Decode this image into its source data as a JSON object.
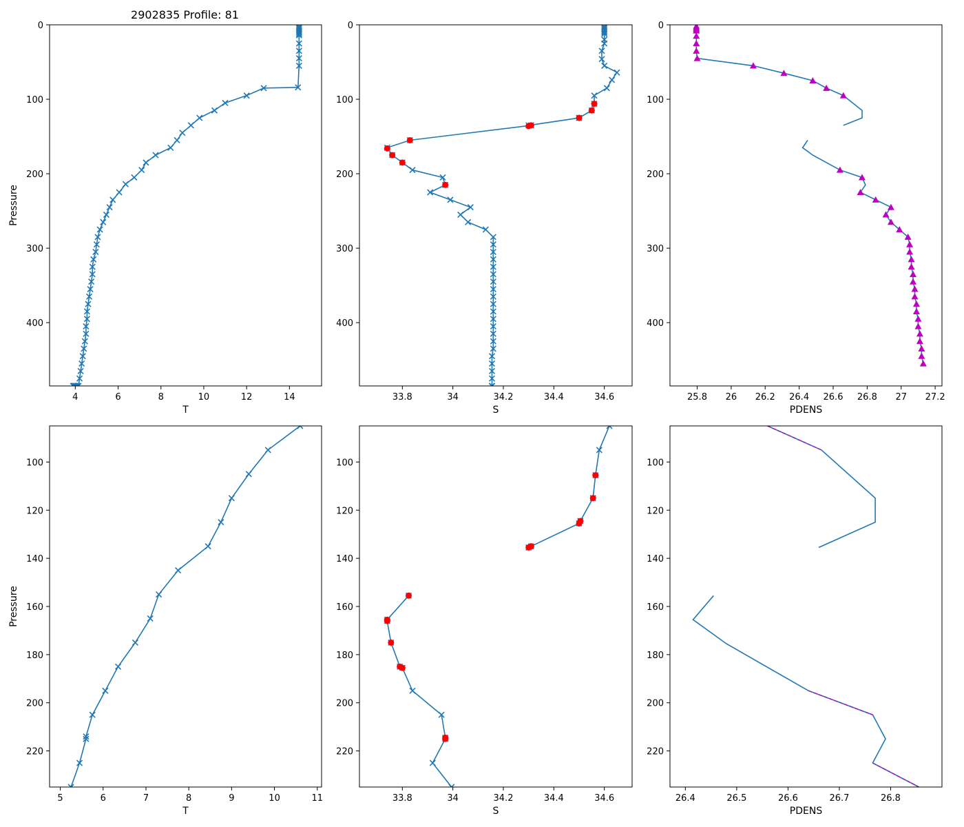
{
  "figure": {
    "title": "2902835 Profile: 81"
  },
  "colors": {
    "line": "#1f77b4",
    "flag": "#ff0000",
    "pdens_mark": "#c000c0",
    "axis": "#000000"
  },
  "chart_data": [
    {
      "type": "line",
      "title": "2902835 Profile: 81",
      "xlabel": "T",
      "ylabel": "Pressure",
      "xlim": [
        2.8,
        15.5
      ],
      "ylim": [
        485,
        0
      ],
      "xticks": [
        4,
        6,
        8,
        10,
        12,
        14
      ],
      "yticks": [
        0,
        100,
        200,
        300,
        400
      ],
      "series": [
        {
          "name": "T",
          "marker": "x",
          "color": "#1f77b4",
          "x": [
            14.45,
            14.45,
            14.45,
            14.45,
            14.45,
            14.45,
            14.45,
            14.45,
            14.45,
            14.45,
            14.45,
            14.4,
            12.8,
            12.0,
            11.0,
            10.5,
            9.8,
            9.4,
            9.0,
            8.75,
            8.45,
            7.75,
            7.3,
            7.1,
            6.75,
            6.35,
            6.05,
            5.75,
            5.6,
            5.45,
            5.3,
            5.15,
            5.05,
            5.0,
            4.95,
            4.85,
            4.8,
            4.8,
            4.75,
            4.7,
            4.65,
            4.6,
            4.55,
            4.55,
            4.5,
            4.5,
            4.45,
            4.4,
            4.35,
            4.3,
            4.25,
            4.2,
            4.15,
            4.1,
            4.05,
            4.0,
            3.95,
            3.95,
            3.9,
            3.9
          ],
          "y": [
            2,
            4,
            6,
            8,
            10,
            12,
            14,
            25,
            35,
            45,
            55,
            84,
            85,
            95,
            105,
            115,
            125,
            135,
            145,
            155,
            165,
            175,
            185,
            195,
            205,
            214,
            225,
            235,
            245,
            255,
            265,
            275,
            285,
            295,
            305,
            315,
            325,
            335,
            345,
            355,
            365,
            375,
            385,
            395,
            405,
            415,
            425,
            435,
            445,
            455,
            465,
            475,
            485,
            485,
            485,
            485,
            485,
            485,
            485,
            485
          ]
        },
        {
          "name": "T_valid",
          "marker": "x",
          "color": "#1f77b4",
          "x": [],
          "y": []
        }
      ]
    },
    {
      "type": "line",
      "xlabel": "S",
      "ylabel": "",
      "xlim": [
        33.63,
        34.71
      ],
      "ylim": [
        485,
        0
      ],
      "xticks": [
        33.8,
        34.0,
        34.2,
        34.4,
        34.6
      ],
      "yticks": [
        0,
        100,
        200,
        300,
        400
      ],
      "series": [
        {
          "name": "S",
          "marker": "x",
          "color": "#1f77b4",
          "x": [
            34.6,
            34.6,
            34.6,
            34.6,
            34.6,
            34.6,
            34.6,
            34.6,
            34.59,
            34.59,
            34.6,
            34.65,
            34.63,
            34.61,
            34.56,
            34.56,
            34.55,
            34.5,
            34.5,
            34.3,
            34.31,
            33.83,
            33.74,
            33.76,
            33.8,
            33.84,
            33.96,
            33.97,
            33.91,
            33.99,
            34.07,
            34.03,
            34.06,
            34.13,
            34.16,
            34.16,
            34.16,
            34.16,
            34.16,
            34.16,
            34.16,
            34.16,
            34.16,
            34.16,
            34.16,
            34.16,
            34.16,
            34.16,
            34.16,
            34.16,
            34.155,
            34.155,
            34.155,
            34.155,
            34.155,
            34.155,
            34.155,
            34.155,
            34.155
          ],
          "y": [
            2,
            4,
            6,
            8,
            10,
            12,
            20,
            25,
            35,
            46,
            55,
            64,
            74,
            85,
            95,
            106,
            115,
            125,
            125,
            135,
            135,
            155,
            165,
            175,
            185,
            195,
            205,
            215,
            225,
            235,
            245,
            255,
            265,
            275,
            285,
            295,
            305,
            315,
            325,
            335,
            345,
            355,
            365,
            375,
            385,
            395,
            405,
            415,
            425,
            435,
            445,
            455,
            465,
            475,
            485,
            485,
            485,
            485,
            485
          ]
        },
        {
          "name": "S flagged",
          "marker": "o",
          "color": "#ff0000",
          "x": [
            34.56,
            34.55,
            34.5,
            34.3,
            34.31,
            33.83,
            33.74,
            33.76,
            33.8,
            33.97
          ],
          "y": [
            106,
            115,
            125,
            136,
            135,
            155,
            166,
            175,
            185,
            215
          ]
        }
      ]
    },
    {
      "type": "line",
      "xlabel": "PDENS",
      "ylabel": "",
      "xlim": [
        25.64,
        27.24
      ],
      "ylim": [
        485,
        0
      ],
      "xticks": [
        25.8,
        26.0,
        26.2,
        26.4,
        26.6,
        26.8,
        27.0,
        27.2
      ],
      "yticks": [
        0,
        100,
        200,
        300,
        400
      ],
      "series": [
        {
          "name": "PDENS",
          "marker": "",
          "color": "#1f77b4",
          "x": [
            25.795,
            25.795,
            25.795,
            25.795,
            25.795,
            25.795,
            25.795,
            25.8,
            26.13,
            26.31,
            26.48,
            26.56,
            26.66,
            26.77,
            26.77,
            26.66,
            null,
            26.45,
            26.42,
            26.48,
            26.64,
            26.77,
            26.79,
            26.76,
            26.85,
            26.94,
            26.91,
            26.94,
            26.99,
            27.04,
            27.05,
            27.05,
            27.06,
            27.06,
            27.07,
            27.07,
            27.08,
            27.08,
            27.09,
            27.09,
            27.1,
            27.1,
            27.11,
            27.11,
            27.12,
            27.12,
            27.13
          ],
          "y": [
            2,
            4,
            6,
            8,
            15,
            25,
            35,
            45,
            55,
            65,
            75,
            85,
            95,
            115,
            125,
            135,
            null,
            155,
            165,
            175,
            195,
            205,
            215,
            225,
            235,
            245,
            255,
            265,
            275,
            285,
            295,
            305,
            315,
            325,
            335,
            345,
            355,
            365,
            375,
            385,
            395,
            405,
            415,
            425,
            435,
            445,
            455
          ]
        },
        {
          "name": "PDENS valid",
          "marker": "^",
          "color": "#c000c0",
          "x": [
            25.795,
            25.795,
            25.795,
            25.795,
            25.795,
            25.795,
            25.795,
            25.8,
            26.13,
            26.31,
            26.48,
            26.56,
            26.66,
            26.64,
            26.77,
            26.76,
            26.85,
            26.94,
            26.91,
            26.94,
            26.99,
            27.04,
            27.05,
            27.05,
            27.06,
            27.06,
            27.07,
            27.07,
            27.08,
            27.08,
            27.09,
            27.09,
            27.1,
            27.1,
            27.11,
            27.11,
            27.12,
            27.12,
            27.13
          ],
          "y": [
            2,
            4,
            6,
            8,
            15,
            25,
            35,
            45,
            55,
            65,
            75,
            85,
            95,
            195,
            205,
            225,
            235,
            245,
            255,
            265,
            275,
            285,
            295,
            305,
            315,
            325,
            335,
            345,
            355,
            365,
            375,
            385,
            395,
            405,
            415,
            425,
            435,
            445,
            455
          ]
        }
      ]
    },
    {
      "type": "line",
      "xlabel": "T",
      "ylabel": "Pressure",
      "xlim": [
        4.75,
        11.1
      ],
      "ylim": [
        235,
        85
      ],
      "xticks": [
        5,
        6,
        7,
        8,
        9,
        10,
        11
      ],
      "yticks": [
        100,
        120,
        140,
        160,
        180,
        200,
        220
      ],
      "series": [
        {
          "name": "T",
          "marker": "x",
          "color": "#1f77b4",
          "x": [
            10.6,
            9.85,
            9.4,
            9.0,
            8.75,
            8.45,
            7.75,
            7.3,
            7.1,
            6.75,
            6.35,
            6.05,
            5.75,
            5.6,
            5.6,
            5.45,
            5.25
          ],
          "y": [
            85,
            95,
            105,
            115,
            125,
            135,
            145,
            155,
            165,
            175,
            185,
            195,
            205,
            214,
            215,
            225,
            235
          ]
        }
      ]
    },
    {
      "type": "line",
      "xlabel": "S",
      "ylabel": "",
      "xlim": [
        33.63,
        34.71
      ],
      "ylim": [
        235,
        85
      ],
      "xticks": [
        33.8,
        34.0,
        34.2,
        34.4,
        34.6
      ],
      "yticks": [
        100,
        120,
        140,
        160,
        180,
        200,
        220
      ],
      "series": [
        {
          "name": "S",
          "marker": "x",
          "color": "#1f77b4",
          "x": [
            34.62,
            34.58,
            34.565,
            34.555,
            34.505,
            34.5,
            34.31,
            34.3,
            null,
            33.825,
            33.74,
            33.74,
            33.755,
            33.79,
            33.8,
            33.84,
            33.955,
            33.97,
            33.97,
            33.92,
            33.995
          ],
          "y": [
            85,
            95,
            105.5,
            115,
            124.5,
            125.5,
            135,
            135.5,
            null,
            155.5,
            165.5,
            166,
            175,
            185,
            185.5,
            195,
            205,
            214.5,
            215,
            225,
            235
          ]
        },
        {
          "name": "S flagged",
          "marker": "o",
          "color": "#ff0000",
          "x": [
            34.565,
            34.555,
            34.505,
            34.5,
            34.31,
            34.3,
            33.825,
            33.74,
            33.74,
            33.755,
            33.79,
            33.8,
            33.97,
            33.97
          ],
          "y": [
            105.5,
            115,
            124.5,
            125.5,
            135,
            135.5,
            155.5,
            165.5,
            166,
            175,
            185,
            185.5,
            214.5,
            215
          ]
        }
      ]
    },
    {
      "type": "line",
      "xlabel": "PDENS",
      "ylabel": "",
      "xlim": [
        26.37,
        26.9
      ],
      "ylim": [
        235,
        85
      ],
      "xticks": [
        26.4,
        26.5,
        26.6,
        26.7,
        26.8
      ],
      "yticks": [
        100,
        120,
        140,
        160,
        180,
        200,
        220
      ],
      "series": [
        {
          "name": "PDENS",
          "marker": "",
          "color": "#1f77b4",
          "x": [
            26.56,
            26.665,
            26.77,
            26.77,
            26.66,
            null,
            26.455,
            26.415,
            26.48,
            26.64,
            26.765,
            26.79,
            26.765,
            26.855
          ],
          "y": [
            85,
            95,
            115,
            125,
            135.5,
            null,
            155.5,
            165.5,
            175.5,
            195,
            205,
            215,
            225,
            235
          ]
        },
        {
          "name": "PDENS valid",
          "marker": "dash",
          "color": "#c000c0",
          "x": [
            26.56,
            26.665,
            null,
            26.64,
            26.765,
            null,
            26.765,
            26.855
          ],
          "y": [
            85,
            95,
            null,
            195,
            205,
            null,
            225,
            235
          ]
        }
      ]
    }
  ]
}
